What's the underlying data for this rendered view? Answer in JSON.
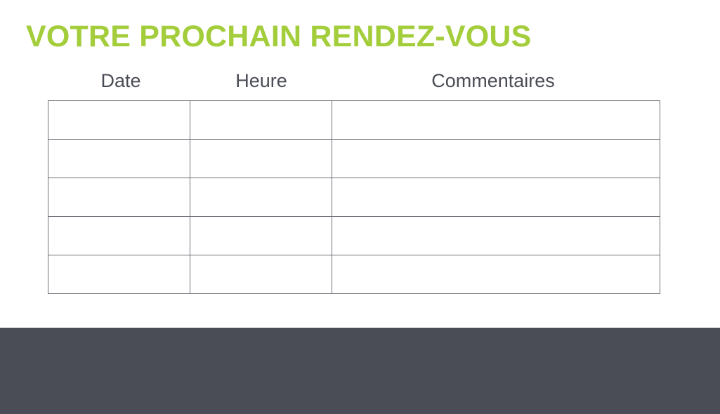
{
  "title": "VOTRE PROCHAIN RENDEZ-VOUS",
  "columns": [
    "Date",
    "Heure",
    "Commentaires"
  ],
  "rows": [
    [
      "",
      "",
      ""
    ],
    [
      "",
      "",
      ""
    ],
    [
      "",
      "",
      ""
    ],
    [
      "",
      "",
      ""
    ],
    [
      "",
      "",
      ""
    ]
  ],
  "colors": {
    "accent": "#a3cd3b",
    "text": "#4a4d55",
    "footer": "#4a4d55",
    "border": "#6f7078"
  }
}
